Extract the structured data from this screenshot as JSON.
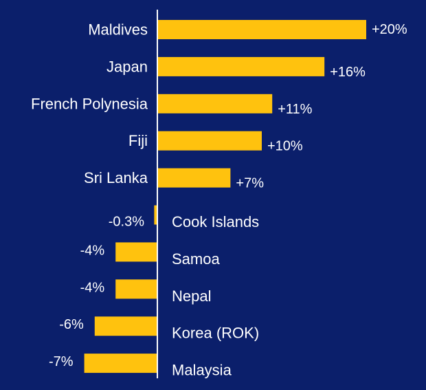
{
  "colors": {
    "background": "#0b1f6b",
    "bar": "#ffc20e",
    "axis": "#ffffff",
    "text": "#ffffff"
  },
  "chart_data": {
    "type": "bar",
    "orientation": "horizontal",
    "categories": [
      "Maldives",
      "Japan",
      "French Polynesia",
      "Fiji",
      "Sri Lanka",
      "Cook Islands",
      "Samoa",
      "Nepal",
      "Korea (ROK)",
      "Malaysia"
    ],
    "values": [
      20,
      16,
      11,
      10,
      7,
      -0.3,
      -4,
      -4,
      -6,
      -7
    ],
    "labels": [
      "+20%",
      "+16%",
      "+11%",
      "+10%",
      "+7%",
      "-0.3%",
      "-4%",
      "-4%",
      "-6%",
      "-7%"
    ],
    "unit": "%",
    "title": "",
    "xlabel": "",
    "ylabel": "",
    "grid": false,
    "legend": "none"
  }
}
